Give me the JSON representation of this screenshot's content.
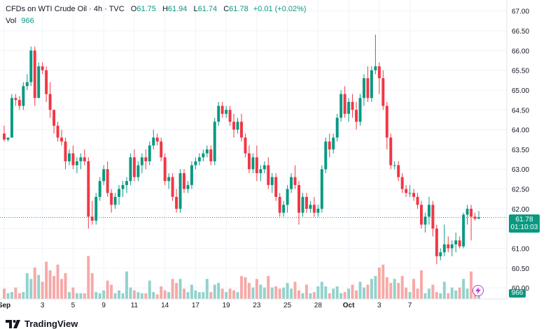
{
  "header": {
    "symbol": "CFDs on WTI Crude Oil · 4h · TVC",
    "o_label": "O",
    "o_value": "61.75",
    "h_label": "H",
    "h_value": "61.94",
    "l_label": "L",
    "l_value": "61.74",
    "c_label": "C",
    "c_value": "61.78",
    "change": "+0.01 (+0.02%)",
    "vol_label": "Vol",
    "vol_value": "966"
  },
  "last_price": {
    "value": "61.78",
    "countdown": "01:10:03"
  },
  "volume_tag": "966",
  "branding": {
    "name": "TradingView"
  },
  "colors": {
    "up": "#089981",
    "down": "#f23645",
    "up_vol": "#92d2cc",
    "down_vol": "#f7a9a7",
    "grid": "#f0f3fa",
    "accent": "#b63bd1"
  },
  "icons": {
    "alert": "lightning-icon",
    "logo": "tradingview-logo-icon"
  },
  "chart_data": {
    "type": "candlestick",
    "title": "CFDs on WTI Crude Oil · 4h · TVC",
    "y_axis_ticks": [
      "67.00",
      "66.50",
      "66.00",
      "65.50",
      "65.00",
      "64.50",
      "64.00",
      "63.50",
      "63.00",
      "62.50",
      "62.00",
      "61.50",
      "61.00",
      "60.50",
      "60.00"
    ],
    "ylim": [
      59.95,
      67.1
    ],
    "x_axis_ticks": [
      "Sep",
      "3",
      "5",
      "9",
      "11",
      "14",
      "17",
      "19",
      "23",
      "25",
      "28",
      "Oct",
      "3",
      "7"
    ],
    "x_tick_index": [
      0,
      10,
      18,
      26,
      34,
      42,
      50,
      58,
      66,
      74,
      82,
      90,
      98,
      106
    ],
    "volume_max": 1000,
    "candles": [
      [
        63.9,
        64.1,
        63.7,
        63.75,
        0.18
      ],
      [
        63.75,
        63.8,
        63.7,
        63.8,
        0.1
      ],
      [
        63.8,
        64.9,
        63.8,
        64.8,
        0.12
      ],
      [
        64.8,
        64.9,
        64.6,
        64.75,
        0.2
      ],
      [
        64.75,
        64.85,
        64.5,
        64.6,
        0.1
      ],
      [
        64.6,
        65.2,
        64.5,
        65.1,
        0.12
      ],
      [
        65.1,
        65.4,
        65.0,
        65.2,
        0.45
      ],
      [
        65.2,
        66.1,
        65.1,
        66.0,
        0.35
      ],
      [
        66.0,
        66.1,
        64.6,
        64.8,
        0.55
      ],
      [
        64.8,
        65.7,
        64.8,
        65.6,
        0.42
      ],
      [
        65.6,
        65.7,
        65.4,
        65.5,
        0.3
      ],
      [
        65.5,
        65.6,
        64.7,
        64.9,
        0.65
      ],
      [
        64.9,
        65.2,
        64.3,
        64.5,
        0.5
      ],
      [
        64.5,
        64.5,
        63.9,
        64.1,
        0.4
      ],
      [
        64.1,
        64.2,
        63.7,
        63.8,
        0.6
      ],
      [
        63.8,
        64.0,
        63.6,
        63.7,
        0.35
      ],
      [
        63.7,
        63.8,
        63.0,
        63.2,
        0.45
      ],
      [
        63.2,
        63.5,
        63.1,
        63.4,
        0.12
      ],
      [
        63.4,
        63.6,
        63.0,
        63.1,
        0.2
      ],
      [
        63.1,
        63.3,
        62.9,
        63.2,
        0.1
      ],
      [
        63.2,
        63.4,
        63.0,
        63.3,
        0.1
      ],
      [
        63.3,
        63.5,
        63.1,
        63.2,
        0.1
      ],
      [
        63.2,
        63.3,
        61.5,
        61.8,
        0.75
      ],
      [
        61.8,
        62.2,
        61.6,
        61.7,
        0.45
      ],
      [
        61.7,
        62.4,
        61.6,
        62.3,
        0.12
      ],
      [
        62.3,
        62.8,
        62.2,
        62.7,
        0.1
      ],
      [
        62.7,
        63.1,
        62.6,
        63.0,
        0.15
      ],
      [
        63.0,
        63.2,
        62.3,
        62.4,
        0.32
      ],
      [
        62.4,
        62.5,
        61.9,
        62.1,
        0.25
      ],
      [
        62.1,
        62.4,
        62.0,
        62.3,
        0.1
      ],
      [
        62.3,
        62.6,
        62.1,
        62.5,
        0.15
      ],
      [
        62.5,
        62.7,
        62.3,
        62.6,
        0.1
      ],
      [
        62.6,
        62.8,
        62.4,
        62.7,
        0.48
      ],
      [
        62.7,
        63.4,
        62.6,
        63.3,
        0.2
      ],
      [
        63.3,
        63.5,
        62.7,
        62.8,
        0.15
      ],
      [
        62.8,
        63.2,
        62.7,
        63.1,
        0.12
      ],
      [
        63.1,
        63.4,
        62.9,
        63.3,
        0.1
      ],
      [
        63.3,
        63.5,
        63.0,
        63.2,
        0.1
      ],
      [
        63.2,
        63.7,
        63.1,
        63.6,
        0.32
      ],
      [
        63.6,
        64.0,
        63.5,
        63.8,
        0.12
      ],
      [
        63.8,
        63.9,
        63.6,
        63.7,
        0.08
      ],
      [
        63.7,
        63.8,
        63.2,
        63.3,
        0.22
      ],
      [
        63.3,
        63.4,
        62.6,
        62.7,
        0.15
      ],
      [
        62.7,
        62.9,
        62.5,
        62.8,
        0.12
      ],
      [
        62.8,
        62.9,
        62.2,
        62.3,
        0.35
      ],
      [
        62.3,
        62.5,
        61.9,
        62.0,
        0.28
      ],
      [
        62.0,
        63.0,
        61.9,
        62.9,
        0.35
      ],
      [
        62.9,
        63.0,
        62.4,
        62.5,
        0.18
      ],
      [
        62.5,
        62.7,
        62.4,
        62.6,
        0.12
      ],
      [
        62.6,
        63.2,
        62.5,
        63.1,
        0.25
      ],
      [
        63.1,
        63.3,
        63.0,
        63.2,
        0.15
      ],
      [
        63.2,
        63.4,
        63.1,
        63.3,
        0.12
      ],
      [
        63.3,
        63.5,
        63.2,
        63.4,
        0.12
      ],
      [
        63.4,
        63.6,
        63.3,
        63.5,
        0.35
      ],
      [
        63.5,
        63.6,
        63.1,
        63.2,
        0.12
      ],
      [
        63.2,
        64.3,
        63.1,
        64.2,
        0.25
      ],
      [
        64.2,
        64.7,
        64.1,
        64.6,
        0.28
      ],
      [
        64.6,
        64.7,
        64.3,
        64.4,
        0.18
      ],
      [
        64.4,
        64.6,
        64.3,
        64.5,
        0.12
      ],
      [
        64.5,
        64.6,
        64.1,
        64.2,
        0.18
      ],
      [
        64.2,
        64.4,
        63.8,
        64.0,
        0.15
      ],
      [
        64.0,
        64.3,
        63.9,
        64.2,
        0.12
      ],
      [
        64.2,
        64.4,
        63.7,
        63.8,
        0.4
      ],
      [
        63.8,
        63.9,
        63.3,
        63.4,
        0.38
      ],
      [
        63.4,
        63.6,
        62.9,
        63.0,
        0.28
      ],
      [
        63.0,
        63.4,
        62.9,
        63.3,
        0.2
      ],
      [
        63.3,
        63.6,
        62.7,
        62.9,
        0.35
      ],
      [
        62.9,
        63.1,
        62.7,
        63.0,
        0.25
      ],
      [
        63.0,
        63.2,
        62.9,
        63.1,
        0.2
      ],
      [
        63.1,
        63.3,
        62.5,
        62.6,
        0.4
      ],
      [
        62.6,
        62.9,
        62.4,
        62.8,
        0.2
      ],
      [
        62.8,
        62.9,
        62.2,
        62.3,
        0.22
      ],
      [
        62.3,
        62.4,
        61.8,
        61.9,
        0.18
      ],
      [
        61.9,
        62.2,
        61.8,
        62.1,
        0.2
      ],
      [
        62.1,
        62.6,
        61.9,
        62.5,
        0.28
      ],
      [
        62.5,
        62.9,
        62.4,
        62.8,
        0.18
      ],
      [
        62.8,
        63.1,
        62.5,
        62.6,
        0.3
      ],
      [
        62.6,
        62.7,
        61.6,
        61.9,
        0.15
      ],
      [
        61.9,
        62.4,
        61.8,
        62.3,
        0.1
      ],
      [
        62.3,
        62.4,
        61.9,
        62.0,
        0.25
      ],
      [
        62.0,
        62.2,
        61.9,
        62.1,
        0.1
      ],
      [
        62.1,
        62.3,
        61.8,
        61.9,
        0.12
      ],
      [
        61.9,
        62.1,
        61.8,
        62.0,
        0.22
      ],
      [
        62.0,
        63.1,
        61.9,
        63.0,
        0.3
      ],
      [
        63.0,
        63.8,
        62.9,
        63.7,
        0.22
      ],
      [
        63.7,
        63.9,
        63.3,
        63.5,
        0.1
      ],
      [
        63.5,
        63.9,
        63.4,
        63.8,
        0.18
      ],
      [
        63.8,
        64.4,
        63.7,
        64.3,
        0.22
      ],
      [
        64.3,
        65.0,
        64.2,
        64.9,
        0.1
      ],
      [
        64.9,
        65.1,
        64.3,
        64.4,
        0.12
      ],
      [
        64.4,
        64.8,
        64.2,
        64.7,
        0.18
      ],
      [
        64.7,
        64.9,
        64.3,
        64.5,
        0.25
      ],
      [
        64.5,
        64.7,
        64.0,
        64.2,
        0.15
      ],
      [
        64.2,
        64.9,
        64.1,
        64.8,
        0.3
      ],
      [
        64.8,
        65.4,
        64.6,
        65.3,
        0.2
      ],
      [
        65.3,
        65.6,
        64.7,
        64.8,
        0.25
      ],
      [
        64.8,
        65.6,
        64.7,
        65.5,
        0.35
      ],
      [
        65.5,
        66.4,
        65.4,
        65.6,
        0.4
      ],
      [
        65.6,
        65.7,
        64.9,
        65.3,
        0.55
      ],
      [
        65.3,
        65.5,
        64.5,
        64.6,
        0.6
      ]
    ],
    "candles_2": [
      [
        64.6,
        64.7,
        63.5,
        63.8,
        0.38
      ],
      [
        63.8,
        63.9,
        63.0,
        63.1,
        0.28
      ],
      [
        63.1,
        63.2,
        63.0,
        63.1,
        0.35
      ],
      [
        63.1,
        63.2,
        62.7,
        62.8,
        0.28
      ],
      [
        62.8,
        62.9,
        62.4,
        62.5,
        0.4
      ],
      [
        62.5,
        62.6,
        62.3,
        62.4,
        0.2
      ],
      [
        62.4,
        62.6,
        62.3,
        62.4,
        0.12
      ],
      [
        62.4,
        62.5,
        62.2,
        62.3,
        0.35
      ],
      [
        62.3,
        62.4,
        62.0,
        62.1,
        0.18
      ],
      [
        62.1,
        62.2,
        61.5,
        61.6,
        0.5
      ],
      [
        61.6,
        61.9,
        61.4,
        61.8,
        0.1
      ],
      [
        61.8,
        62.3,
        61.6,
        62.1,
        0.18
      ],
      [
        62.1,
        62.2,
        61.3,
        61.5,
        0.25
      ],
      [
        61.5,
        61.6,
        60.6,
        60.8,
        0.12
      ],
      [
        60.8,
        61.0,
        60.7,
        60.9,
        0.1
      ],
      [
        60.9,
        61.6,
        60.8,
        61.1,
        0.3
      ],
      [
        61.1,
        61.3,
        60.9,
        61.0,
        0.1
      ],
      [
        61.0,
        61.2,
        60.8,
        61.1,
        0.2
      ],
      [
        61.1,
        61.4,
        60.9,
        61.2,
        0.15
      ],
      [
        61.2,
        61.3,
        61.0,
        61.05,
        0.2
      ],
      [
        61.05,
        61.9,
        61.0,
        61.85,
        0.35
      ],
      [
        61.85,
        62.1,
        61.6,
        62.0,
        0.18
      ],
      [
        62.0,
        62.1,
        61.2,
        61.8,
        0.48
      ],
      [
        61.8,
        61.9,
        61.7,
        61.75,
        0.15
      ],
      [
        61.75,
        61.94,
        61.74,
        61.78,
        0.08
      ]
    ]
  }
}
